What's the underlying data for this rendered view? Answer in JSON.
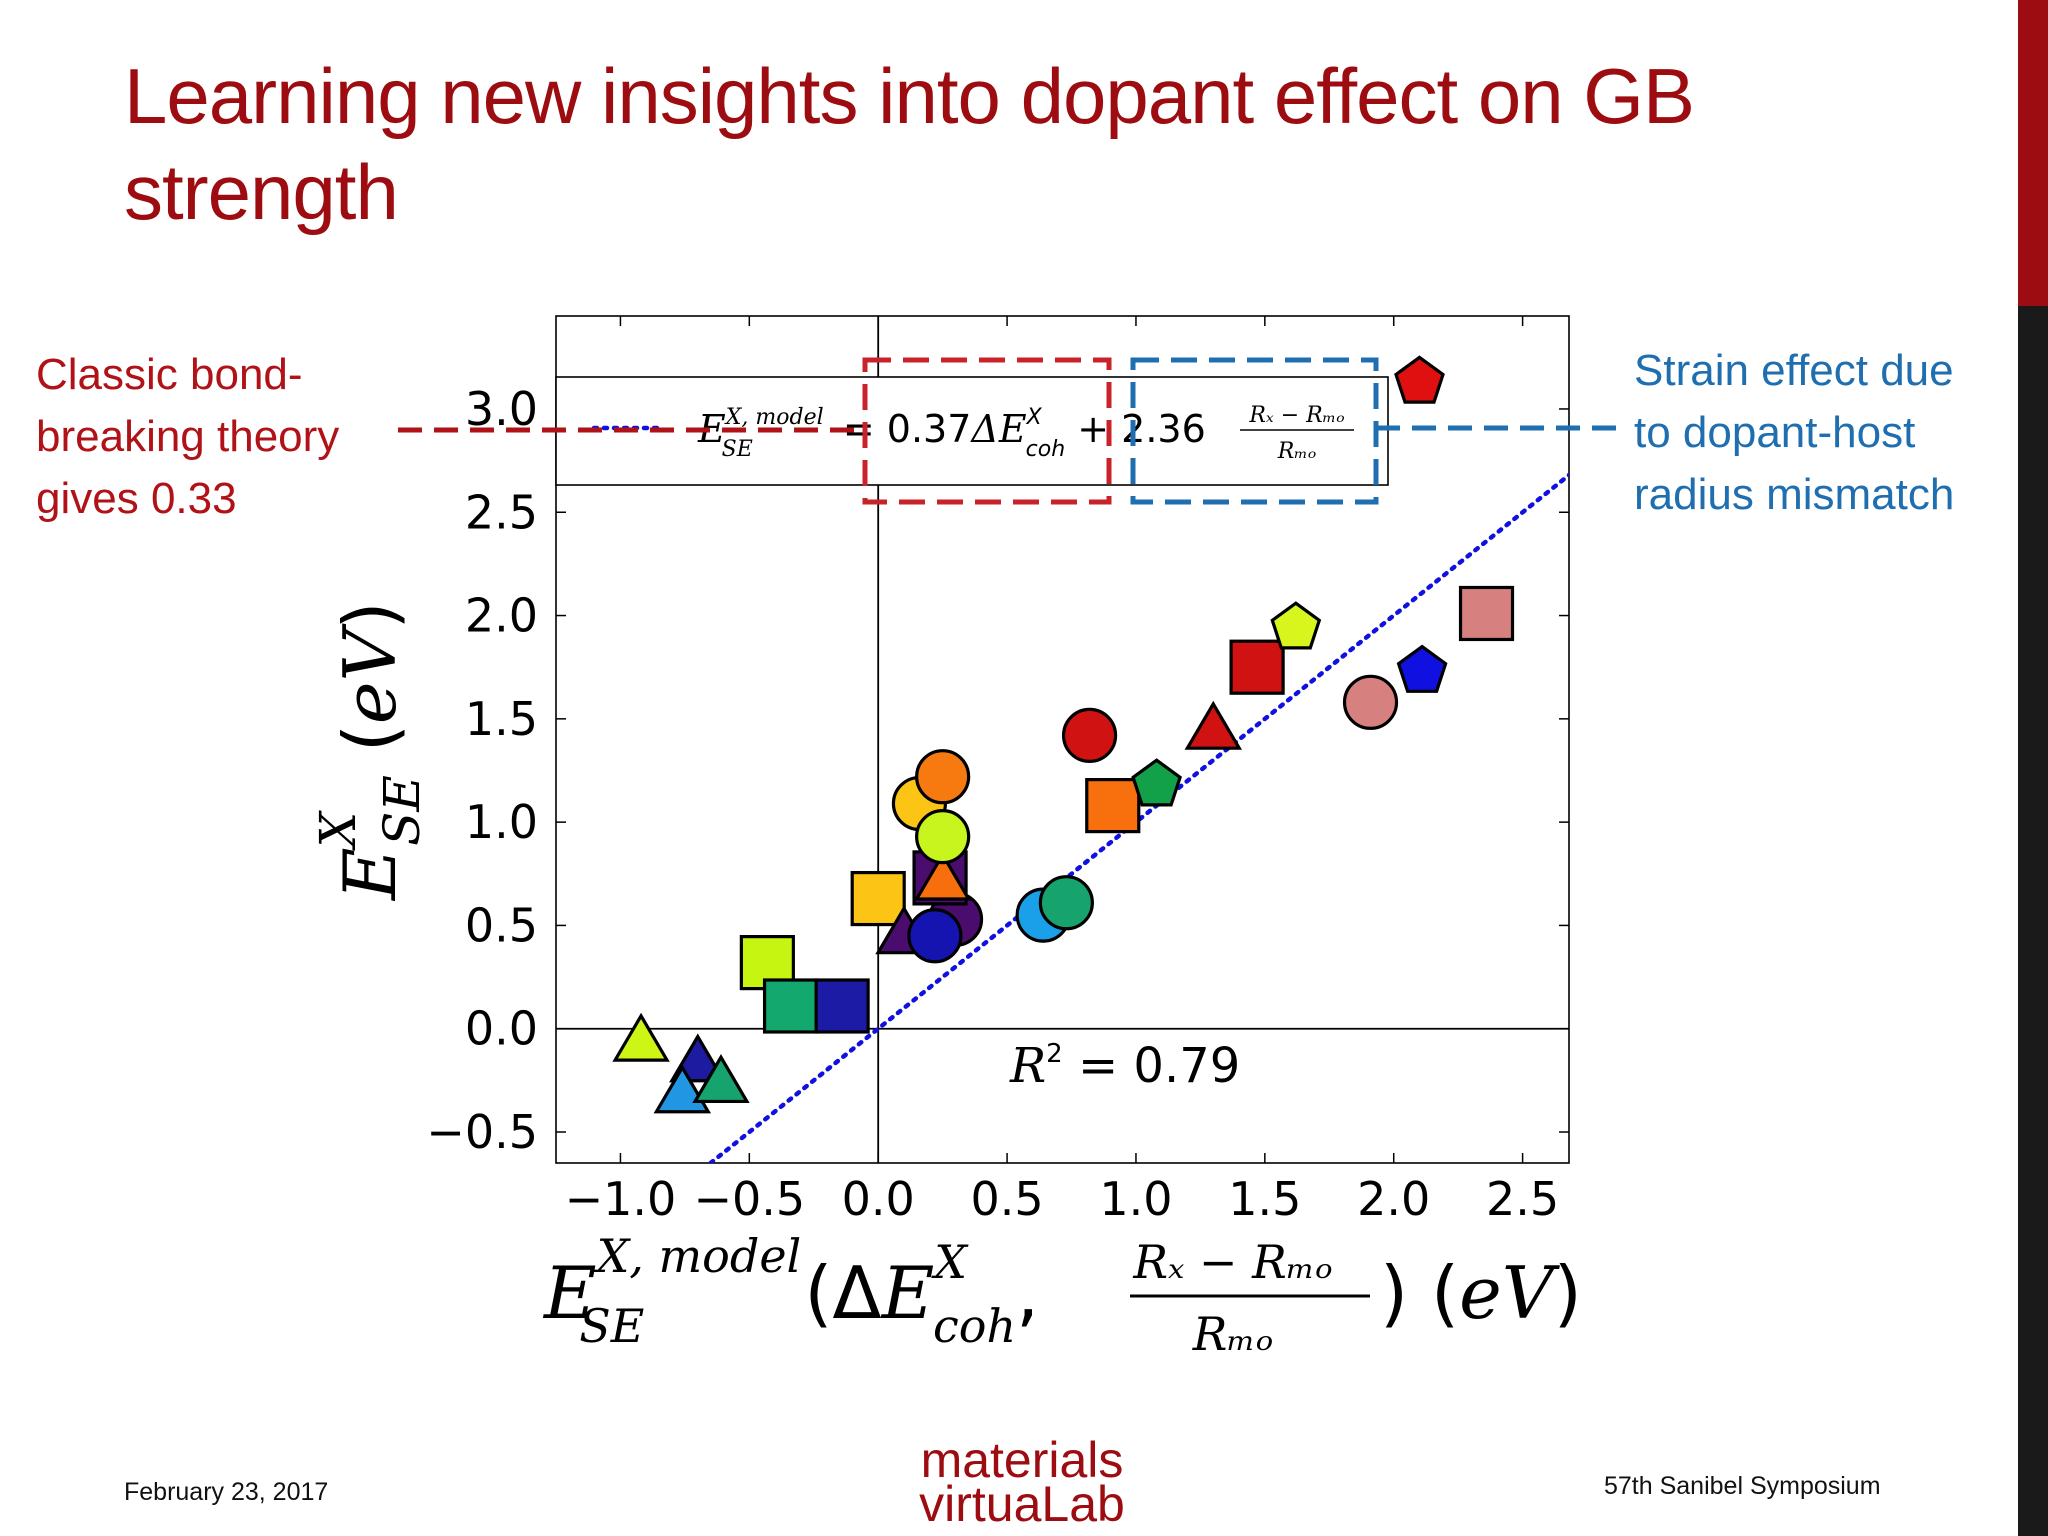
{
  "slide": {
    "title_line1": "Learning new insights into dopant effect on GB",
    "title_line2": "strength",
    "left_note": [
      "Classic bond-",
      "breaking theory",
      "gives 0.33"
    ],
    "right_note": [
      "Strain effect due",
      "to dopant-host",
      "radius mismatch"
    ],
    "colors": {
      "title": "#9d0c10",
      "left_note": "#b01217",
      "right_note": "#1f6eb0"
    }
  },
  "footer": {
    "date": "February 23, 2017",
    "conference": "57th Sanibel Symposium",
    "logo_line1": "materials",
    "logo_line2": "virtuaLab"
  },
  "chart_data": {
    "type": "scatter",
    "xlim": [
      -1.25,
      2.68
    ],
    "ylim": [
      -0.65,
      3.45
    ],
    "x_ticks": [
      -1.0,
      -0.5,
      0.0,
      0.5,
      1.0,
      1.5,
      2.0,
      2.5
    ],
    "x_tick_labels": [
      "−1.0",
      "−0.5",
      "0.0",
      "0.5",
      "1.0",
      "1.5",
      "2.0",
      "2.5"
    ],
    "y_ticks": [
      -0.5,
      0.0,
      0.5,
      1.0,
      1.5,
      2.0,
      2.5,
      3.0
    ],
    "y_tick_labels": [
      "−0.5",
      "0.0",
      "0.5",
      "1.0",
      "1.5",
      "2.0",
      "2.5",
      "3.0"
    ],
    "xlabel": "E_SE^{X, model}(ΔE_coh^X, (R_X − R_Mo)/R_Mo) (eV)",
    "ylabel": "E_SE^X (eV)",
    "legend": {
      "line_style": "dotted",
      "placement": "top",
      "coef_ecoh": "0.37",
      "coef_strain": "2.36",
      "lhs": "E_SE^{X, model}",
      "equals": "=",
      "plus": "+"
    },
    "annotation": {
      "label": "R² = 0.79",
      "r2": "0.79"
    },
    "fit_line": {
      "slope": 1.0,
      "intercept": 0.0,
      "color": "#1010e0",
      "style": "dotted"
    },
    "reference_lines": {
      "x": 0.0,
      "y": 0.0
    },
    "grid": false,
    "points": [
      {
        "x": -0.92,
        "y": -0.07,
        "shape": "triangle",
        "color": "#cdf516"
      },
      {
        "x": -0.7,
        "y": -0.17,
        "shape": "triangle",
        "color": "#1d1ba0"
      },
      {
        "x": -0.76,
        "y": -0.32,
        "shape": "triangle",
        "color": "#2196e2"
      },
      {
        "x": -0.61,
        "y": -0.27,
        "shape": "triangle",
        "color": "#16a36d"
      },
      {
        "x": -0.43,
        "y": 0.32,
        "shape": "square",
        "color": "#c6f512"
      },
      {
        "x": -0.34,
        "y": 0.11,
        "shape": "square",
        "color": "#13a86d"
      },
      {
        "x": -0.14,
        "y": 0.11,
        "shape": "square",
        "color": "#1b1ba6"
      },
      {
        "x": 0.0,
        "y": 0.63,
        "shape": "square",
        "color": "#fcc414"
      },
      {
        "x": 0.1,
        "y": 0.45,
        "shape": "triangle",
        "color": "#4a0d6e"
      },
      {
        "x": 0.3,
        "y": 0.53,
        "shape": "circle",
        "color": "#4a0d6e"
      },
      {
        "x": 0.22,
        "y": 0.45,
        "shape": "circle",
        "color": "#1614b0"
      },
      {
        "x": 0.24,
        "y": 0.73,
        "shape": "square",
        "color": "#4a0d6e"
      },
      {
        "x": 0.25,
        "y": 0.71,
        "shape": "triangle",
        "color": "#f66f0c"
      },
      {
        "x": 0.16,
        "y": 1.09,
        "shape": "circle",
        "color": "#fcc414"
      },
      {
        "x": 0.25,
        "y": 0.93,
        "shape": "circle",
        "color": "#c9f51f"
      },
      {
        "x": 0.25,
        "y": 1.22,
        "shape": "circle",
        "color": "#f67a10"
      },
      {
        "x": 0.64,
        "y": 0.55,
        "shape": "circle",
        "color": "#1aa0e8"
      },
      {
        "x": 0.73,
        "y": 0.61,
        "shape": "circle",
        "color": "#16a36d"
      },
      {
        "x": 0.82,
        "y": 1.42,
        "shape": "circle",
        "color": "#d01212"
      },
      {
        "x": 0.91,
        "y": 1.08,
        "shape": "square",
        "color": "#f86f0e"
      },
      {
        "x": 1.08,
        "y": 1.18,
        "shape": "pentagon",
        "color": "#12a048"
      },
      {
        "x": 1.3,
        "y": 1.44,
        "shape": "triangle",
        "color": "#d01212"
      },
      {
        "x": 1.47,
        "y": 1.75,
        "shape": "square",
        "color": "#d01212"
      },
      {
        "x": 1.62,
        "y": 1.94,
        "shape": "pentagon",
        "color": "#d8f51e"
      },
      {
        "x": 1.91,
        "y": 1.58,
        "shape": "circle",
        "color": "#d68080"
      },
      {
        "x": 2.11,
        "y": 1.73,
        "shape": "pentagon",
        "color": "#1010e0"
      },
      {
        "x": 2.36,
        "y": 2.01,
        "shape": "square",
        "color": "#d68080"
      },
      {
        "x": 2.1,
        "y": 3.13,
        "shape": "pentagon",
        "color": "#e01010"
      }
    ],
    "highlight_boxes": {
      "ecoh_term": {
        "color": "#c8232b",
        "style": "dashed"
      },
      "strain_term": {
        "color": "#1f6eb0",
        "style": "dashed"
      }
    }
  }
}
